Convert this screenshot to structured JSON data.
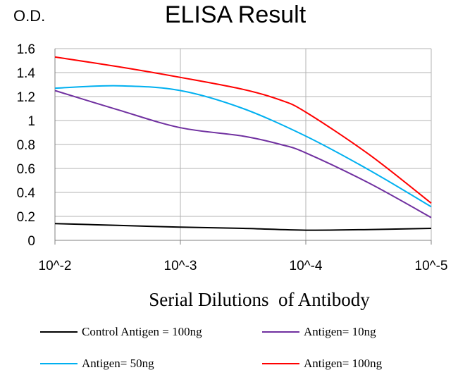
{
  "chart_data": {
    "type": "line",
    "title": "ELISA Result",
    "ylabel": "O.D.",
    "xlabel": "Serial Dilutions  of Antibody",
    "categories": [
      "10^-2",
      "10^-3",
      "10^-4",
      "10^-5"
    ],
    "yticks": [
      "0",
      "0.2",
      "0.4",
      "0.6",
      "0.8",
      "1",
      "1.2",
      "1.4",
      "1.6"
    ],
    "ylim": [
      0,
      1.6
    ],
    "grid": true,
    "legend_position": "bottom",
    "series": [
      {
        "name": "Control Antigen = 100ng",
        "color": "#000000",
        "points": [
          [
            0,
            0.14
          ],
          [
            0.5,
            0.125
          ],
          [
            1,
            0.11
          ],
          [
            1.5,
            0.1
          ],
          [
            2,
            0.085
          ],
          [
            2.5,
            0.09
          ],
          [
            3,
            0.1
          ]
        ]
      },
      {
        "name": "Antigen= 10ng",
        "color": "#7030a0",
        "points": [
          [
            0,
            1.25
          ],
          [
            0.5,
            1.09
          ],
          [
            1,
            0.94
          ],
          [
            1.5,
            0.87
          ],
          [
            1.8,
            0.8
          ],
          [
            2,
            0.73
          ],
          [
            2.5,
            0.48
          ],
          [
            3,
            0.19
          ]
        ]
      },
      {
        "name": "Antigen= 50ng",
        "color": "#00b0f0",
        "points": [
          [
            0,
            1.27
          ],
          [
            0.5,
            1.29
          ],
          [
            1,
            1.25
          ],
          [
            1.5,
            1.1
          ],
          [
            2,
            0.87
          ],
          [
            2.5,
            0.59
          ],
          [
            3,
            0.28
          ]
        ]
      },
      {
        "name": "Antigen= 100ng",
        "color": "#ff0000",
        "points": [
          [
            0,
            1.53
          ],
          [
            0.5,
            1.45
          ],
          [
            1,
            1.36
          ],
          [
            1.5,
            1.26
          ],
          [
            1.8,
            1.17
          ],
          [
            2,
            1.07
          ],
          [
            2.5,
            0.72
          ],
          [
            3,
            0.31
          ]
        ]
      }
    ]
  }
}
